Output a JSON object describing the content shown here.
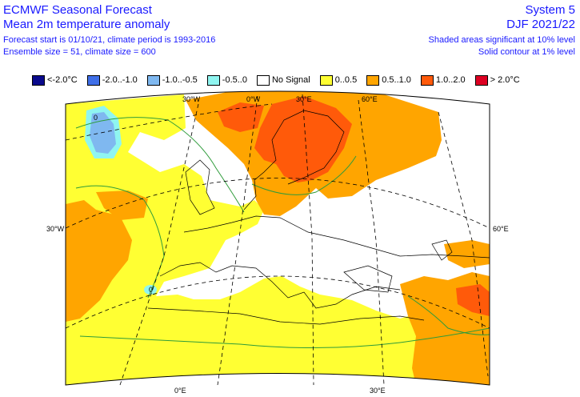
{
  "header": {
    "title": "ECMWF Seasonal Forecast",
    "subtitle": "Mean 2m temperature anomaly",
    "line3": "Forecast start is 01/10/21, climate period is 1993-2016",
    "line4": "Ensemble size = 51, climate size = 600",
    "system": "System 5",
    "season": "DJF 2021/22",
    "sig1": "Shaded areas significant at 10% level",
    "sig2": "Solid contour at 1% level"
  },
  "legend": [
    {
      "label": "<-2.0°C",
      "color": "#0a0a8c"
    },
    {
      "label": "-2.0..-1.0",
      "color": "#3f6fe8"
    },
    {
      "label": "-1.0..-0.5",
      "color": "#7fb8f0"
    },
    {
      "label": "-0.5..0",
      "color": "#8ff5f0"
    },
    {
      "label": "No Signal",
      "color": "#ffffff"
    },
    {
      "label": "0..0.5",
      "color": "#ffff33"
    },
    {
      "label": "0.5..1.0",
      "color": "#ffa500"
    },
    {
      "label": "1.0..2.0",
      "color": "#ff5a0a"
    },
    {
      "label": "> 2.0°C",
      "color": "#dd0022"
    }
  ],
  "grid_labels": {
    "top": [
      "30°W",
      "0°W",
      "30°E",
      "60°E"
    ],
    "left": "30°W",
    "right": "60°E",
    "bottom": [
      "0°E",
      "30°E"
    ]
  },
  "contour_labels": [
    "0",
    "0"
  ]
}
